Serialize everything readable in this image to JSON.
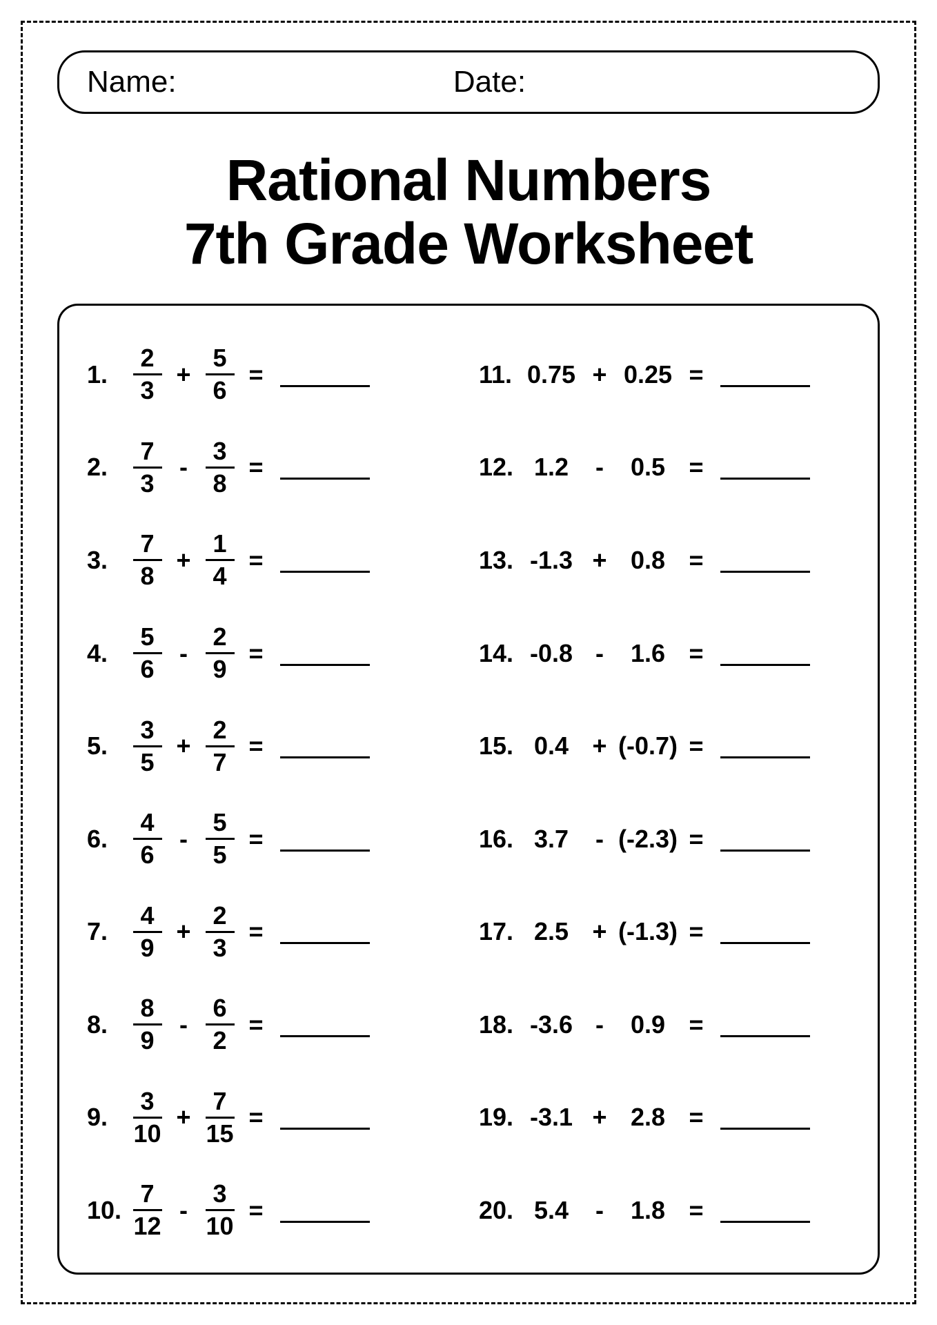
{
  "header": {
    "name_label": "Name:",
    "date_label": "Date:"
  },
  "title_line1": "Rational Numbers",
  "title_line2": "7th Grade Worksheet",
  "left_problems": [
    {
      "n": "1.",
      "a_top": "2",
      "a_bot": "3",
      "op": "+",
      "b_top": "5",
      "b_bot": "6"
    },
    {
      "n": "2.",
      "a_top": "7",
      "a_bot": "3",
      "op": "-",
      "b_top": "3",
      "b_bot": "8"
    },
    {
      "n": "3.",
      "a_top": "7",
      "a_bot": "8",
      "op": "+",
      "b_top": "1",
      "b_bot": "4"
    },
    {
      "n": "4.",
      "a_top": "5",
      "a_bot": "6",
      "op": "-",
      "b_top": "2",
      "b_bot": "9"
    },
    {
      "n": "5.",
      "a_top": "3",
      "a_bot": "5",
      "op": "+",
      "b_top": "2",
      "b_bot": "7"
    },
    {
      "n": "6.",
      "a_top": "4",
      "a_bot": "6",
      "op": "-",
      "b_top": "5",
      "b_bot": "5"
    },
    {
      "n": "7.",
      "a_top": "4",
      "a_bot": "9",
      "op": "+",
      "b_top": "2",
      "b_bot": "3"
    },
    {
      "n": "8.",
      "a_top": "8",
      "a_bot": "9",
      "op": "-",
      "b_top": "6",
      "b_bot": "2"
    },
    {
      "n": "9.",
      "a_top": "3",
      "a_bot": "10",
      "op": "+",
      "b_top": "7",
      "b_bot": "15"
    },
    {
      "n": "10.",
      "a_top": "7",
      "a_bot": "12",
      "op": "-",
      "b_top": "3",
      "b_bot": "10"
    }
  ],
  "right_problems": [
    {
      "n": "11.",
      "a": "0.75",
      "op": "+",
      "b": "0.25"
    },
    {
      "n": "12.",
      "a": "1.2",
      "op": "-",
      "b": "0.5"
    },
    {
      "n": "13.",
      "a": "-1.3",
      "op": "+",
      "b": "0.8"
    },
    {
      "n": "14.",
      "a": "-0.8",
      "op": "-",
      "b": "1.6"
    },
    {
      "n": "15.",
      "a": "0.4",
      "op": "+",
      "b": "(-0.7)"
    },
    {
      "n": "16.",
      "a": "3.7",
      "op": "-",
      "b": "(-2.3)"
    },
    {
      "n": "17.",
      "a": "2.5",
      "op": "+",
      "b": "(-1.3)"
    },
    {
      "n": "18.",
      "a": "-3.6",
      "op": "-",
      "b": "0.9"
    },
    {
      "n": "19.",
      "a": "-3.1",
      "op": "+",
      "b": "2.8"
    },
    {
      "n": "20.",
      "a": "5.4",
      "op": "-",
      "b": "1.8"
    }
  ],
  "equals": "="
}
